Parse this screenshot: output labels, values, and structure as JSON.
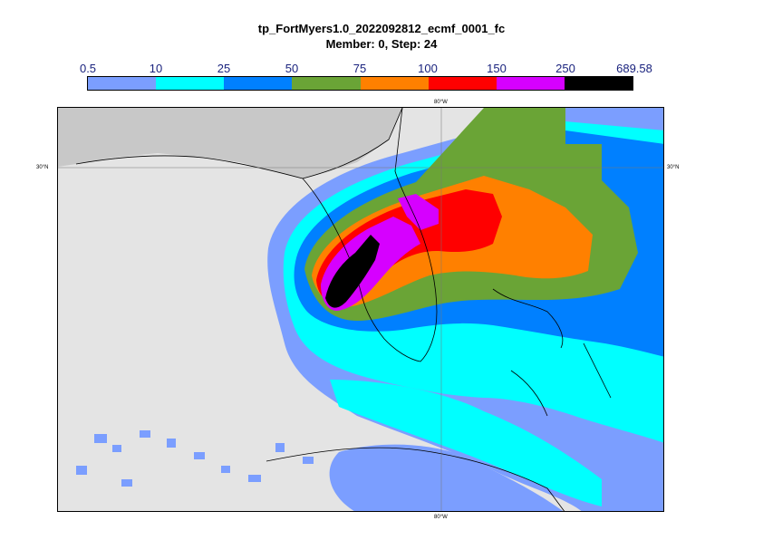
{
  "title_line1": "tp_FortMyers1.0_2022092812_ecmf_0001_fc",
  "title_line2": "Member: 0, Step: 24",
  "legend": {
    "ticks": [
      "0.5",
      "10",
      "25",
      "50",
      "75",
      "100",
      "150",
      "250",
      "689.58"
    ],
    "colors": [
      "#7b9eff",
      "#00ffff",
      "#0080ff",
      "#6aa436",
      "#ff8000",
      "#ff0000",
      "#d600ff",
      "#000000"
    ]
  },
  "gridlines": {
    "lon_top": "80°W",
    "lon_bottom": "80°W",
    "lat_left": "30°N",
    "lat_right": "30°N"
  }
}
